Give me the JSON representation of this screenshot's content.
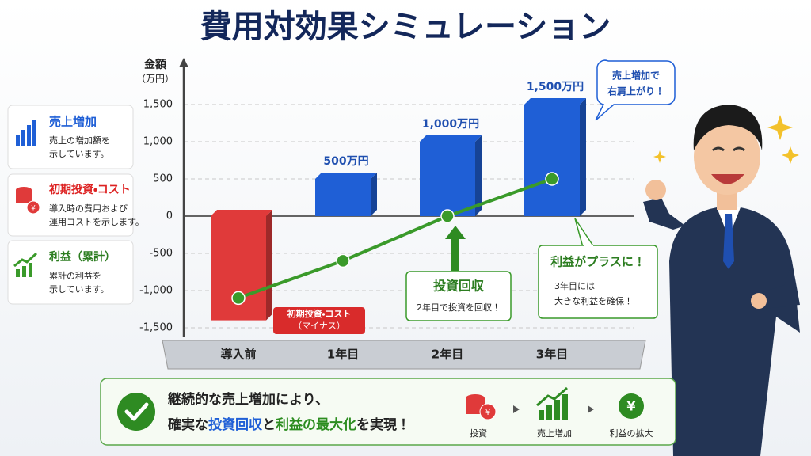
{
  "chart_data": {
    "type": "combo",
    "title": "費用対効果シミュレーション",
    "y_label": [
      "金額",
      "（万円）"
    ],
    "categories": [
      "導入前",
      "1年目",
      "2年目",
      "3年目"
    ],
    "series": [
      {
        "name": "売上増加",
        "type": "bar",
        "color": "#1f5fd6",
        "values": [
          null,
          500,
          1000,
          1500
        ],
        "value_labels": [
          null,
          "500万円",
          "1,000万円",
          "1,500万円"
        ]
      },
      {
        "name": "初期投資・コスト",
        "type": "bar",
        "color": "#e03a3a",
        "values": [
          -1400,
          null,
          null,
          null
        ]
      },
      {
        "name": "利益（累計）",
        "type": "line",
        "color": "#3a9a2a",
        "values": [
          -1100,
          -600,
          0,
          500
        ]
      }
    ],
    "legend_notes": [
      [
        "売上の増加額を",
        "示しています。"
      ],
      [
        "導入時の費用および",
        "運用コストを示します。"
      ],
      [
        "累計の利益を",
        "示しています。"
      ]
    ],
    "ylim": [
      -1500,
      2000
    ],
    "yticks": [
      {
        "value": -1500,
        "label": "-1,500"
      },
      {
        "value": -1000,
        "label": "-1,000"
      },
      -500,
      0,
      500,
      {
        "value": 1000,
        "label": "1,000"
      },
      {
        "value": 1500,
        "label": "1,500"
      }
    ],
    "grid": true,
    "annotations": {
      "cost": [
        "初期投資・コスト",
        "（マイナス）"
      ],
      "payback": {
        "title": "投資回収",
        "text": "2年目で投資を回収！"
      },
      "profit": {
        "title": "利益がプラスに！",
        "lines": [
          "3年目には",
          "大きな利益を確保！"
        ]
      },
      "bubble": [
        "売上増加で",
        "右肩上がり！"
      ]
    },
    "banner": {
      "line1": "継続的な売上増加により、",
      "line2": [
        "確実な",
        "投資回収",
        "と",
        "利益の最大化",
        "を実現！"
      ],
      "flow": [
        "投資",
        "売上増加",
        "利益の拡大"
      ]
    }
  }
}
